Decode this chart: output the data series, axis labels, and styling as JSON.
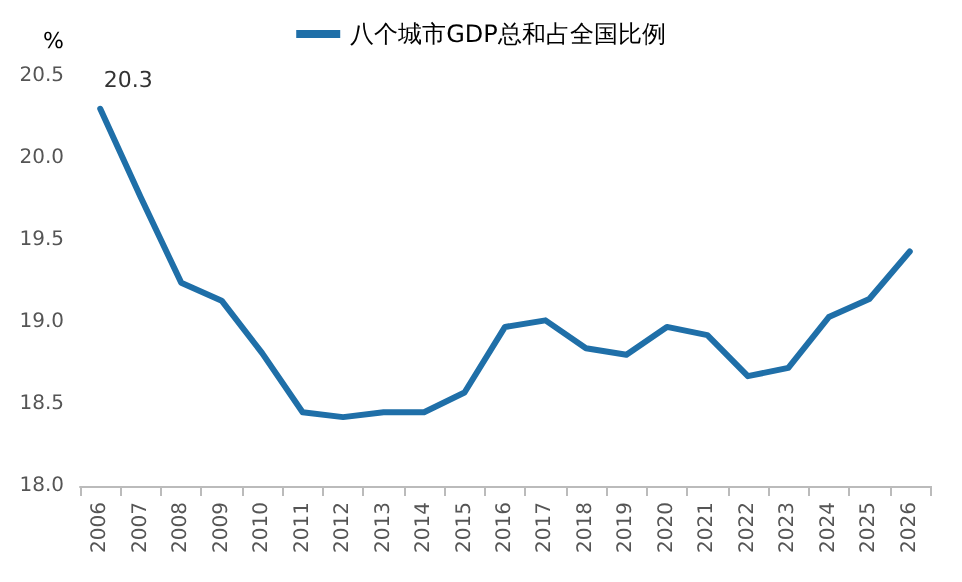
{
  "chart_data": {
    "type": "line",
    "ylabel": "%",
    "categories": [
      "2006",
      "2007",
      "2008",
      "2009",
      "2010",
      "2011",
      "2012",
      "2013",
      "2014",
      "2015",
      "2016",
      "2017",
      "2018",
      "2019",
      "2020",
      "2021",
      "2022",
      "2023",
      "2024",
      "2025",
      "2026"
    ],
    "series": [
      {
        "name": "八个城市GDP总和占全国比例",
        "color": "#1f6fa8",
        "values": [
          20.3,
          19.76,
          19.24,
          19.13,
          18.81,
          18.45,
          18.42,
          18.45,
          18.45,
          18.57,
          18.97,
          19.01,
          18.84,
          18.8,
          18.97,
          18.92,
          18.67,
          18.72,
          19.03,
          19.14,
          19.43
        ],
        "value_labels": [
          "20.3",
          null,
          null,
          null,
          null,
          null,
          null,
          null,
          null,
          null,
          null,
          null,
          null,
          null,
          null,
          null,
          null,
          null,
          null,
          null,
          null
        ]
      }
    ],
    "ylim": [
      18,
      20.5
    ],
    "yticks": [
      {
        "value": 18,
        "label": "18.0"
      },
      {
        "value": 18.5,
        "label": "18.5"
      },
      {
        "value": 19,
        "label": "19.0"
      },
      {
        "value": 19.5,
        "label": "19.5"
      },
      {
        "value": 20,
        "label": "20.0"
      },
      {
        "value": 20.5,
        "label": "20.5"
      }
    ],
    "grid": false,
    "legend": "top",
    "marker": "none",
    "line_style": "solid"
  }
}
